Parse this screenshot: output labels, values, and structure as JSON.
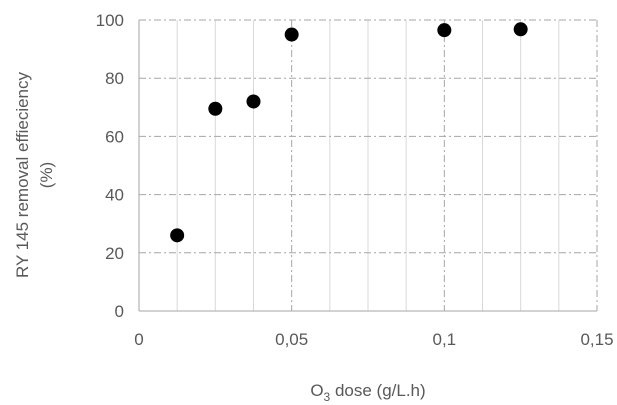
{
  "chart_data": {
    "type": "scatter",
    "title": "",
    "xlabel": {
      "main": "O",
      "subscript": "3",
      "rest": " dose (g/L.h)"
    },
    "ylabel": {
      "line1": "RY 145 removal effieciency",
      "line2": "(%)"
    },
    "xlim": [
      0,
      0.15
    ],
    "ylim": [
      0,
      100
    ],
    "x_ticks": [
      {
        "value": 0,
        "label": "0"
      },
      {
        "value": 0.05,
        "label": "0,05"
      },
      {
        "value": 0.1,
        "label": "0,1"
      },
      {
        "value": 0.15,
        "label": "0,15"
      }
    ],
    "y_ticks": [
      {
        "value": 0,
        "label": "0"
      },
      {
        "value": 20,
        "label": "20"
      },
      {
        "value": 40,
        "label": "40"
      },
      {
        "value": 60,
        "label": "60"
      },
      {
        "value": 80,
        "label": "80"
      },
      {
        "value": 100,
        "label": "100"
      }
    ],
    "x_minor_step": 0.0125,
    "grid": true,
    "series": [
      {
        "color": "#000000",
        "points": [
          {
            "x": 0.0125,
            "y": 26
          },
          {
            "x": 0.025,
            "y": 69.5
          },
          {
            "x": 0.0375,
            "y": 72
          },
          {
            "x": 0.05,
            "y": 95
          },
          {
            "x": 0.1,
            "y": 96.5
          },
          {
            "x": 0.125,
            "y": 96.8
          }
        ]
      }
    ]
  },
  "colors": {
    "major_grid": "#a6a6a6",
    "minor_grid": "#d9d9d9",
    "axis_text": "#595959"
  }
}
